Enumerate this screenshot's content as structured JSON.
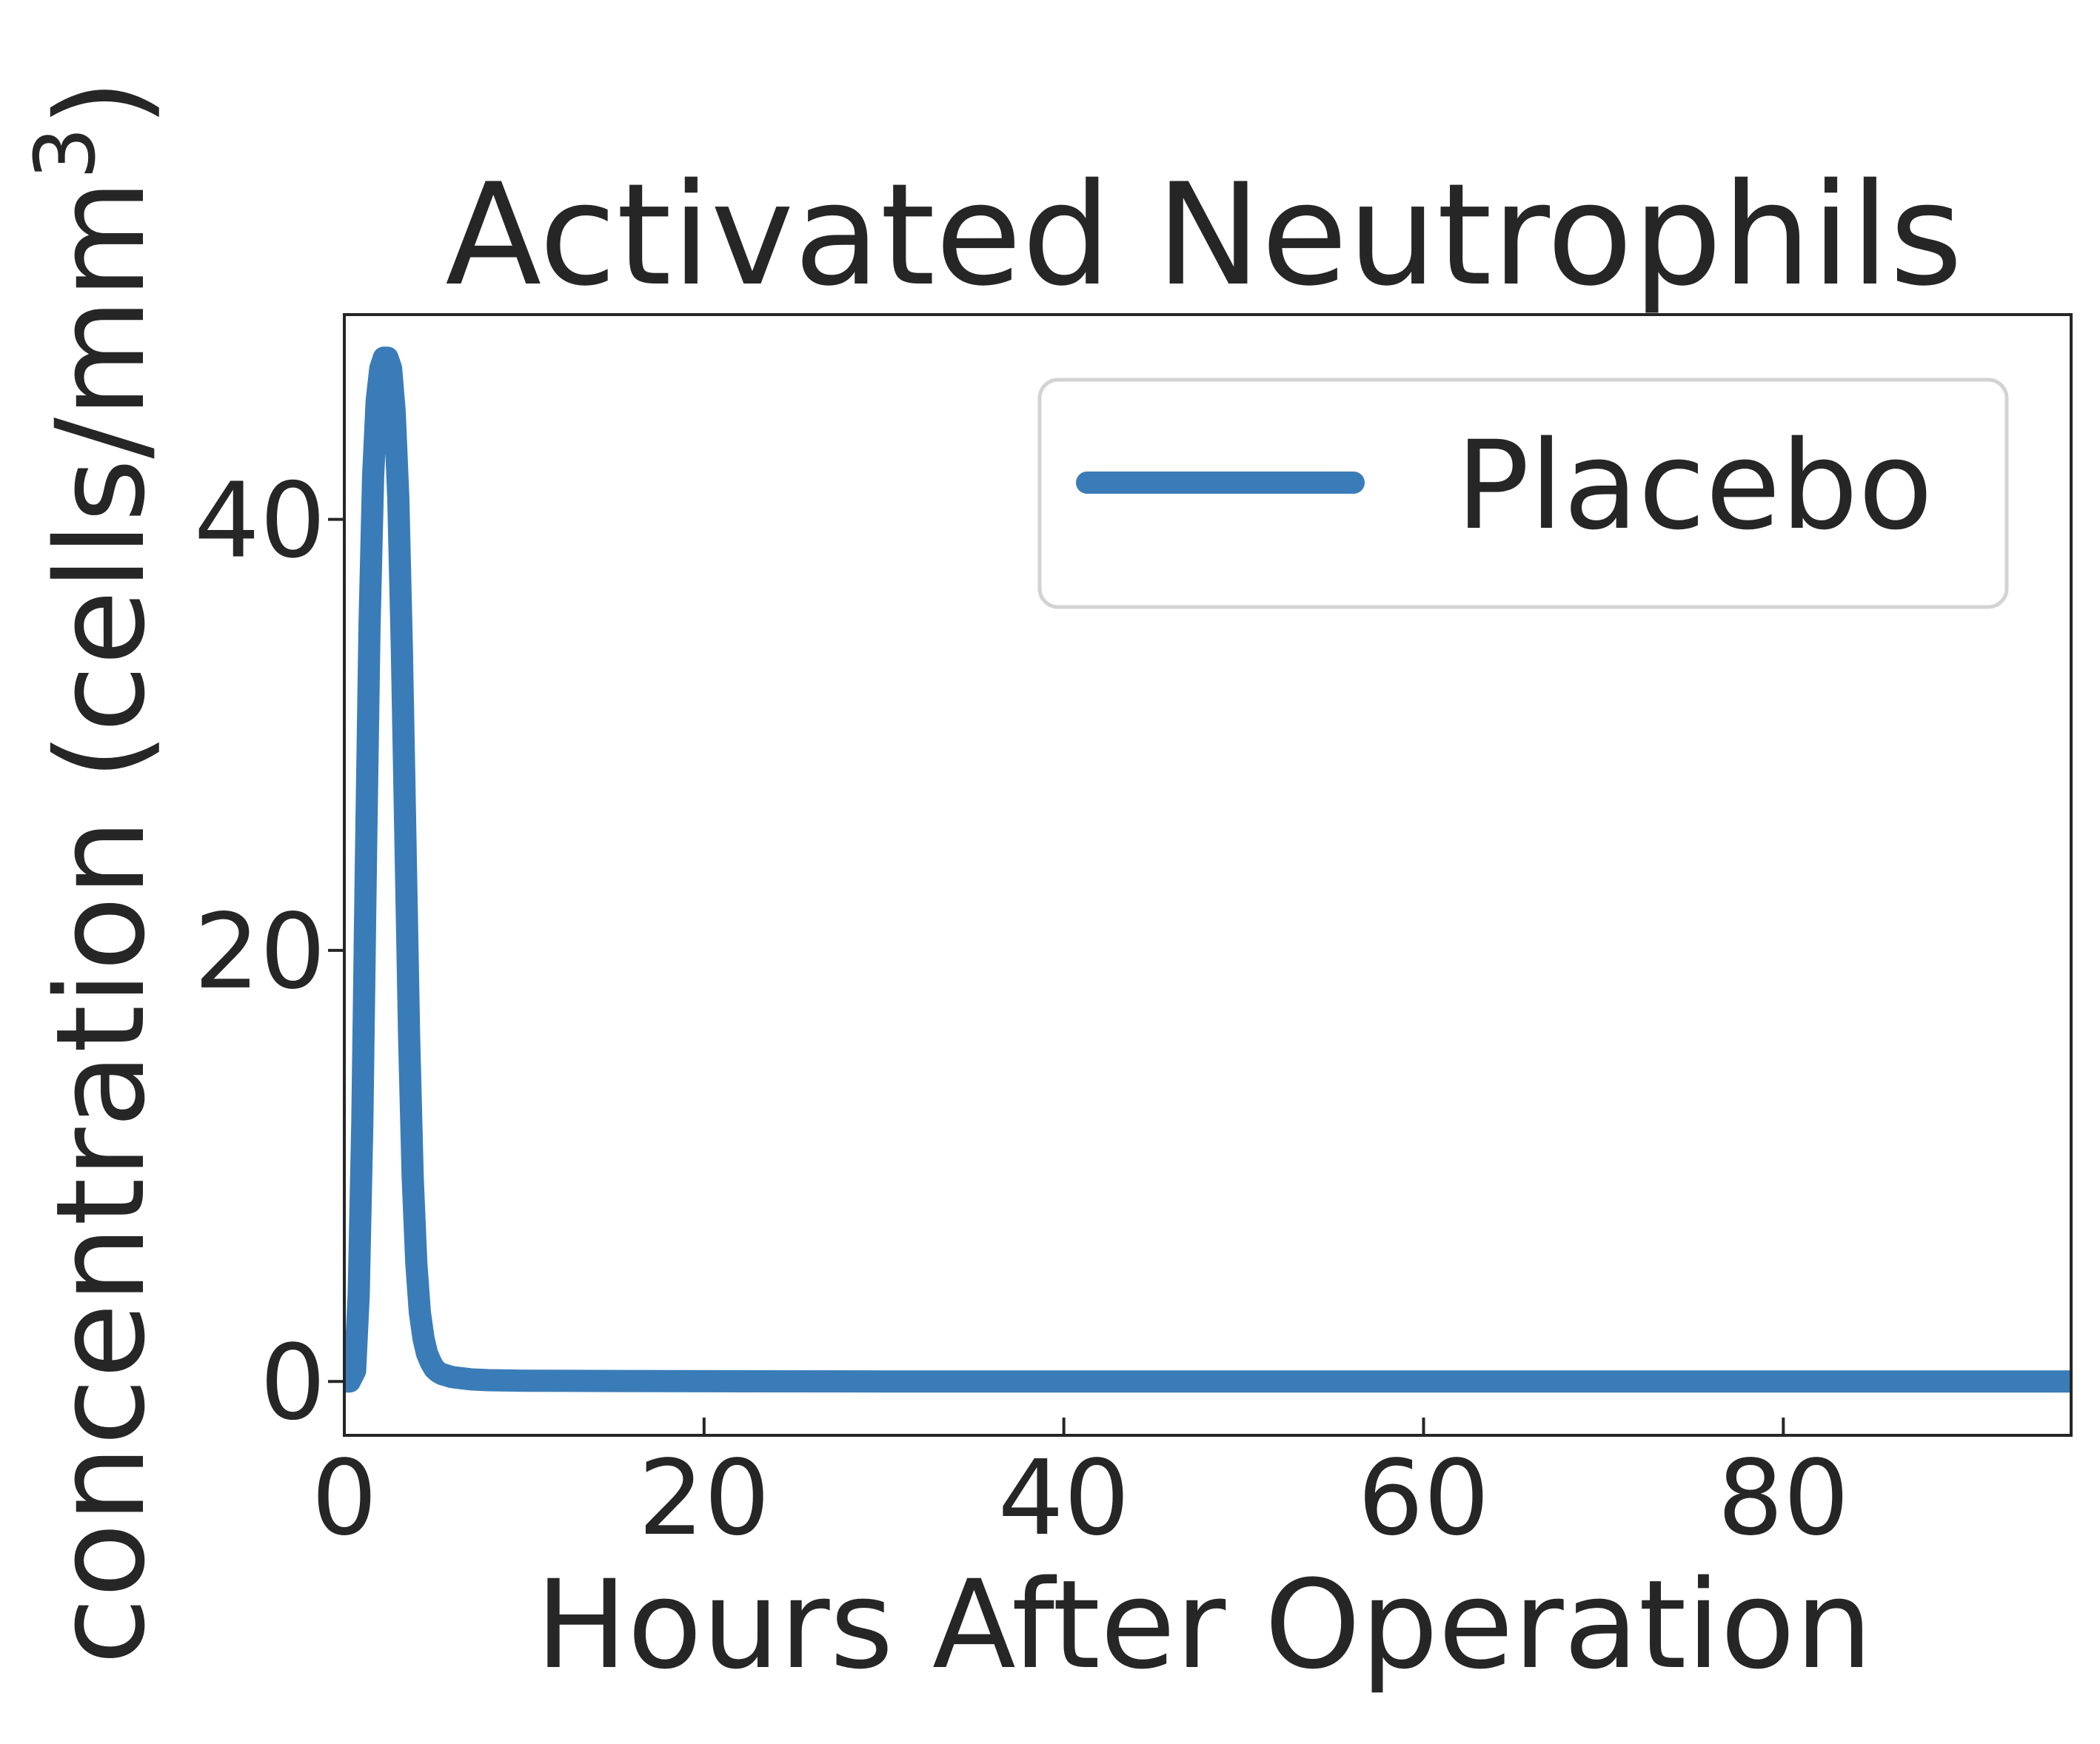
{
  "chart_data": {
    "type": "line",
    "title": "Activated Neutrophils",
    "xlabel": "Hours After Operation",
    "ylabel": "concentration (cells/mm",
    "ylabel_superscript": "3",
    "ylabel_close": ")",
    "xlim": [
      0,
      96
    ],
    "ylim": [
      -2.5,
      49.5
    ],
    "xticks": [
      0,
      20,
      40,
      60,
      80
    ],
    "yticks": [
      0,
      20,
      40
    ],
    "grid": false,
    "legend": {
      "position": "top-right"
    },
    "colors": {
      "series": "#3a7cb8",
      "text": "#262626",
      "frame": "#262626",
      "legend_border": "#d3d3d3"
    },
    "series": [
      {
        "name": "Placebo",
        "x": [
          0,
          0.3,
          0.6,
          0.8,
          1.0,
          1.2,
          1.4,
          1.6,
          1.8,
          2.0,
          2.2,
          2.4,
          2.6,
          2.8,
          3.0,
          3.2,
          3.4,
          3.6,
          3.8,
          4.0,
          4.2,
          4.4,
          4.6,
          4.8,
          5.0,
          5.2,
          5.4,
          5.6,
          5.8,
          6.0,
          6.5,
          7.0,
          8.0,
          10.0,
          15.0,
          20.0,
          30.0,
          40.0,
          60.0,
          80.0,
          96.0
        ],
        "y": [
          0,
          0,
          0.5,
          4,
          12,
          24,
          35,
          42,
          45.5,
          47,
          47.5,
          47.5,
          47,
          45,
          41,
          34,
          25,
          16,
          9.5,
          5.5,
          3.2,
          2.0,
          1.3,
          0.9,
          0.6,
          0.45,
          0.35,
          0.3,
          0.25,
          0.2,
          0.15,
          0.1,
          0.06,
          0.03,
          0.02,
          0.01,
          0,
          0,
          0,
          0,
          0
        ]
      }
    ]
  }
}
